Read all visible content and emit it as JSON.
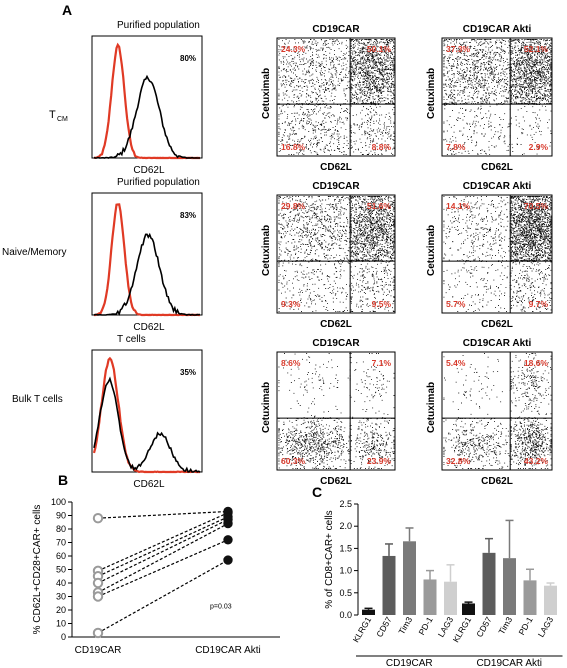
{
  "figure": {
    "panel_a": "A",
    "panel_b": "B",
    "panel_c": "C"
  },
  "panel_a": {
    "rows": [
      {
        "row_label": "T",
        "row_label_sub": "CM",
        "hist_title": "Purified population",
        "hist_pct": "80%",
        "hist_xlabel": "CD62L",
        "dots": [
          {
            "title": "CD19CAR",
            "ylabel": "Cetuximab",
            "xlabel": "CD62L",
            "q": {
              "ul": "24.3%",
              "ur": "50.1%",
              "ll": "16.8%",
              "lr": "8.8%"
            }
          },
          {
            "title": "CD19CAR Akti",
            "ylabel": "Cetuximab",
            "xlabel": "CD62L",
            "q": {
              "ul": "37.3%",
              "ur": "52.1%",
              "ll": "7.8%",
              "lr": "2.9%"
            }
          }
        ]
      },
      {
        "row_label": "Naive/Memory",
        "row_label_sub": "",
        "hist_title": "Purified population",
        "hist_pct": "83%",
        "hist_xlabel": "CD62L",
        "dots": [
          {
            "title": "CD19CAR",
            "ylabel": "Cetuximab",
            "xlabel": "CD62L",
            "q": {
              "ul": "29.8%",
              "ur": "51.6%",
              "ll": "9.3%",
              "lr": "9.5%"
            }
          },
          {
            "title": "CD19CAR Akti",
            "ylabel": "Cetuximab",
            "xlabel": "CD62L",
            "q": {
              "ul": "14.1%",
              "ur": "70.5%",
              "ll": "5.7%",
              "lr": "9.7%"
            }
          }
        ]
      },
      {
        "row_label": "Bulk T cells",
        "row_label_sub": "",
        "hist_title": "T cells",
        "hist_pct": "35%",
        "hist_xlabel": "CD62L",
        "dots": [
          {
            "title": "CD19CAR",
            "ylabel": "Cetuximab",
            "xlabel": "CD62L",
            "q": {
              "ul": "8.6%",
              "ur": "7.1%",
              "ll": "60.3%",
              "lr": "23.9%"
            }
          },
          {
            "title": "CD19CAR Akti",
            "ylabel": "Cetuximab",
            "xlabel": "CD62L",
            "q": {
              "ul": "5.4%",
              "ur": "18.6%",
              "ll": "32.8%",
              "lr": "43.2%"
            }
          }
        ]
      }
    ]
  },
  "chart_data": [
    {
      "type": "scatter",
      "panel": "B",
      "ylabel": "% CD62L+CD28+CAR+ cells",
      "categories": [
        "CD19CAR",
        "CD19CAR Akti"
      ],
      "ylim": [
        0,
        100
      ],
      "yticks": [
        0,
        10,
        20,
        30,
        40,
        50,
        60,
        70,
        80,
        90,
        100
      ],
      "annotation": "p=0.03",
      "pairs": [
        [
          88,
          93
        ],
        [
          49,
          92
        ],
        [
          45,
          89
        ],
        [
          40,
          87
        ],
        [
          33,
          84
        ],
        [
          30,
          72
        ],
        [
          3,
          57
        ]
      ],
      "colors": {
        "before": "#9a9a9a",
        "after": "#111111"
      }
    },
    {
      "type": "bar",
      "panel": "C",
      "ylabel": "% of CD8+CAR+ cells",
      "ylim": [
        0,
        2.5
      ],
      "yticks": [
        "0.0",
        "0.5",
        "1.0",
        "1.5",
        "2.0",
        "2.5"
      ],
      "groups": [
        {
          "name": "CD19CAR",
          "categories": [
            "KLRG1",
            "CD57",
            "Tim3",
            "PD-1",
            "LAG3"
          ],
          "values": [
            0.12,
            1.33,
            1.66,
            0.8,
            0.75
          ],
          "errors": [
            0.03,
            0.27,
            0.3,
            0.2,
            0.38
          ]
        },
        {
          "name": "CD19CAR Akti",
          "categories": [
            "KLRG1",
            "CD57",
            "Tim3",
            "PD-1",
            "LAG3"
          ],
          "values": [
            0.26,
            1.4,
            1.28,
            0.78,
            0.66
          ],
          "errors": [
            0.03,
            0.32,
            0.85,
            0.25,
            0.06
          ]
        }
      ],
      "colors": [
        "#111111",
        "#5c5c5c",
        "#7a7a7a",
        "#9a9a9a",
        "#cfcfcf"
      ]
    }
  ]
}
